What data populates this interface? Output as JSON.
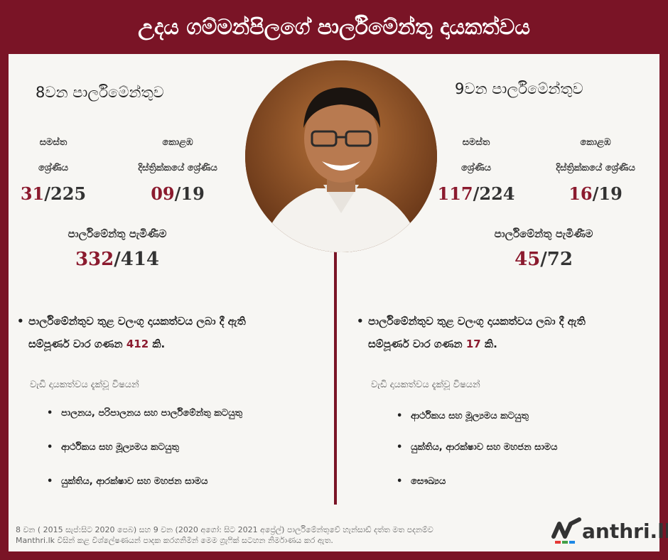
{
  "header": {
    "title": "උදය ගම්මන්පිලගේ පාර්ලිමේන්තු දායකත්වය"
  },
  "left": {
    "title": "8වන පාර්ලිමේන්තුව",
    "overall_label_1": "සමස්ත",
    "overall_label_2": "ශ්‍රේණිය",
    "district_label_1": "කොළඹ",
    "district_label_2": "දිස්ත්‍රික්කයේ ශ්‍රේණිය",
    "overall_rank": "31",
    "overall_total": "/225",
    "district_rank": "09",
    "district_total": "/19",
    "attendance_label": "පාර්ලිමේන්තු පැමිණීම",
    "attendance": "332",
    "attendance_total": "/414",
    "bullet_pre": "පාර්ලිමේන්තුව තුළ වලංගු දායකත්වය ලබා දී ඇති",
    "bullet_post_a": "සම්පූර්ණ වාර ගණන ",
    "count": "412",
    "bullet_post_b": " කි.",
    "sub_head": "වැඩි දායකත්වය දැක්වූ විෂයන්",
    "topics": [
      "පාලනය, පරිපාලනය සහ පාර්ලිමේන්තු කටයුතු",
      "ආර්ථිකය සහ මූල්‍යමය කටයුතු",
      "යුක්තිය, ආරක්ෂාව සහ මහජන සාමය"
    ]
  },
  "right": {
    "title": "9වන පාර්ලිමේන්තුව",
    "overall_label_1": "සමස්ත",
    "overall_label_2": "ශ්‍රේණිය",
    "district_label_1": "කොළඹ",
    "district_label_2": "දිස්ත්‍රික්කයේ ශ්‍රේණිය",
    "overall_rank": "117",
    "overall_total": "/224",
    "district_rank": "16",
    "district_total": "/19",
    "attendance_label": "පාර්ලිමේන්තු පැමිණීම",
    "attendance": "45",
    "attendance_total": "/72",
    "bullet_pre": "පාර්ලිමේන්තුව තුළ වලංගු දායකත්වය ලබා දී ඇති",
    "bullet_post_a": "සම්පූර්ණ වාර ගණන ",
    "count": "17",
    "bullet_post_b": " කි.",
    "sub_head": "වැඩි දායකත්වය දැක්වූ විෂයන්",
    "topics": [
      "ආර්ථිකය සහ මූල්‍යමය කටයුතු",
      "යුක්තිය, ආරක්ෂාව සහ මහජන සාමය",
      "සෞඛ්‍යය"
    ]
  },
  "footer": {
    "line1": "8 වන ( 2015 සැප්:සිට 2020 පෙබ) සහ 9 වන (2020 අගෝ: සිට 2021 අප්‍රේල්) පාර්ලිමේන්තුවේ හැන්සාඩ් දත්ත මත පදනම්ව",
    "line2": "Manthri.lk විසින් කළ විශ්ලේෂණයන් පාදක කරගනිමින් මෙම ග්‍රැෆික් සටහන නිර්මාණය කර ඇත."
  },
  "logo": {
    "text": "anthri.lk",
    "icon": "m-check-logo"
  },
  "colors": {
    "accent": "#8b1a2e",
    "frame": "#7a1426",
    "panel": "#f7f6f3"
  }
}
